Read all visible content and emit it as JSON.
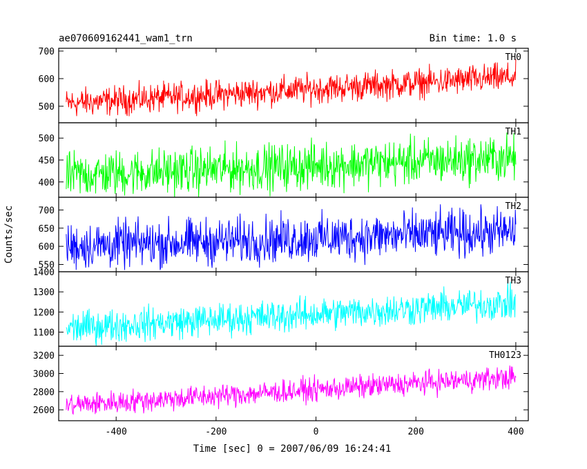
{
  "header": {
    "title": "ae070609162441_wam1_trn",
    "bin_time": "Bin time: 1.0 s"
  },
  "axes": {
    "xlabel": "Time [sec] 0 = 2007/06/09 16:24:41",
    "ylabel": "Counts/sec",
    "xlim": [
      -515,
      425
    ],
    "xticks": [
      -400,
      -200,
      0,
      200,
      400
    ]
  },
  "chart_data": [
    {
      "type": "line",
      "name": "TH0",
      "color": "#ff0000",
      "x_range": [
        -500,
        400
      ],
      "trend": {
        "start": 510,
        "end": 605
      },
      "noise_amplitude": 45,
      "ylim": [
        440,
        710
      ],
      "yticks": [
        500,
        600,
        700
      ]
    },
    {
      "type": "line",
      "name": "TH1",
      "color": "#00ff00",
      "x_range": [
        -500,
        400
      ],
      "trend": {
        "start": 415,
        "end": 455
      },
      "noise_amplitude": 45,
      "ylim": [
        365,
        535
      ],
      "yticks": [
        400,
        450,
        500
      ]
    },
    {
      "type": "line",
      "name": "TH2",
      "color": "#0000ff",
      "x_range": [
        -500,
        400
      ],
      "trend": {
        "start": 600,
        "end": 640
      },
      "noise_amplitude": 55,
      "ylim": [
        530,
        735
      ],
      "yticks": [
        550,
        600,
        650,
        700
      ]
    },
    {
      "type": "line",
      "name": "TH3",
      "color": "#00ffff",
      "x_range": [
        -500,
        400
      ],
      "trend": {
        "start": 1120,
        "end": 1245
      },
      "noise_amplitude": 70,
      "ylim": [
        1030,
        1400
      ],
      "yticks": [
        1100,
        1200,
        1300,
        1400
      ]
    },
    {
      "type": "line",
      "name": "TH0123",
      "color": "#ff00ff",
      "x_range": [
        -500,
        400
      ],
      "trend": {
        "start": 2650,
        "end": 2960
      },
      "noise_amplitude": 110,
      "ylim": [
        2480,
        3300
      ],
      "yticks": [
        2600,
        2800,
        3000,
        3200
      ]
    }
  ]
}
